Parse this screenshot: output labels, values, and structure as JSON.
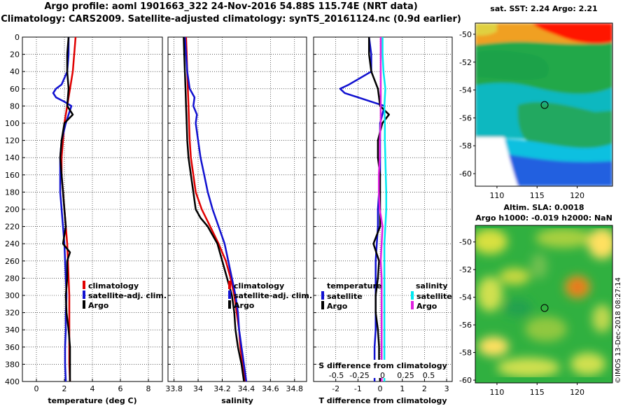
{
  "header": {
    "line1": "Argo profile: aoml 1901663_322 24-Nov-2016 54.88S 115.74E (NRT data)",
    "line2": "Climatology: CARS2009. Satellite-adjusted climatology: synTS_20161124.nc (0.9d earlier)"
  },
  "depth_ticks": [
    "0",
    "20",
    "40",
    "60",
    "80",
    "100",
    "120",
    "140",
    "160",
    "180",
    "200",
    "220",
    "240",
    "260",
    "280",
    "300",
    "320",
    "340",
    "360",
    "380",
    "400"
  ],
  "colors": {
    "climatology": "#e00000",
    "satellite": "#1010d0",
    "argo": "#000000",
    "sat_salinity": "#00e8f0",
    "argo_salinity": "#e020e0"
  },
  "sst_map": {
    "title": "sat. SST: 2.24 Argo: 2.21",
    "lat_ticks": [
      "-50",
      "-52",
      "-54",
      "-56",
      "-58",
      "-60"
    ],
    "lon_ticks": [
      "110",
      "115",
      "120"
    ]
  },
  "sla_map": {
    "title1": "Altim. SLA: 0.0018",
    "title2": "Argo h1000: -0.019 h2000: NaN",
    "lat_ticks": [
      "-50",
      "-52",
      "-54",
      "-56",
      "-58",
      "-60"
    ],
    "lon_ticks": [
      "110",
      "115",
      "120"
    ]
  },
  "credit": "©IMOS 13-Dec-2018 08:27:14",
  "chart_data": [
    {
      "type": "line",
      "id": "temperature",
      "xlabel": "temperature (deg C)",
      "ylabel": "depth",
      "xlim": [
        -1,
        9
      ],
      "ylim": [
        400,
        0
      ],
      "x_ticks": [
        "0",
        "2",
        "4",
        "6",
        "8"
      ],
      "legend": [
        "climatology",
        "satellite-adj. clim.",
        "Argo"
      ],
      "series": [
        {
          "name": "climatology",
          "depth": [
            0,
            20,
            40,
            60,
            80,
            100,
            120,
            140,
            160,
            180,
            200,
            220,
            240,
            260,
            280,
            300,
            320,
            340,
            360,
            380,
            400
          ],
          "values": [
            2.8,
            2.7,
            2.6,
            2.4,
            2.2,
            2.0,
            1.9,
            1.8,
            1.8,
            1.9,
            2.0,
            2.1,
            2.2,
            2.25,
            2.3,
            2.35,
            2.35,
            2.35,
            2.35,
            2.35,
            2.4
          ]
        },
        {
          "name": "satellite-adj. clim.",
          "depth": [
            0,
            20,
            40,
            55,
            60,
            65,
            70,
            75,
            80,
            100,
            120,
            140,
            160,
            180,
            200,
            220,
            240,
            260,
            280,
            300,
            320,
            340,
            360,
            380,
            400
          ],
          "values": [
            2.3,
            2.3,
            2.2,
            1.8,
            1.4,
            1.2,
            1.4,
            2.0,
            2.5,
            2.1,
            1.8,
            1.7,
            1.7,
            1.7,
            1.8,
            1.9,
            2.0,
            2.05,
            2.1,
            2.15,
            2.1,
            2.1,
            2.05,
            2.05,
            2.1
          ]
        },
        {
          "name": "Argo",
          "depth": [
            0,
            20,
            40,
            60,
            80,
            90,
            100,
            120,
            140,
            160,
            180,
            200,
            220,
            240,
            250,
            260,
            280,
            300,
            320,
            340,
            360,
            380,
            400
          ],
          "values": [
            2.3,
            2.2,
            2.2,
            2.3,
            2.2,
            2.6,
            2.0,
            1.8,
            1.7,
            1.8,
            1.9,
            2.0,
            2.1,
            1.9,
            2.4,
            2.2,
            2.2,
            2.1,
            2.15,
            2.3,
            2.4,
            2.4,
            2.4
          ]
        }
      ]
    },
    {
      "type": "line",
      "id": "salinity",
      "xlabel": "salinity",
      "ylabel": "depth",
      "xlim": [
        33.75,
        34.9
      ],
      "ylim": [
        400,
        0
      ],
      "x_ticks": [
        "33.8",
        "34",
        "34.2",
        "34.4",
        "34.6",
        "34.8"
      ],
      "legend": [
        "climatology",
        "satellite-adj. clim.",
        "Argo"
      ],
      "series": [
        {
          "name": "climatology",
          "depth": [
            0,
            20,
            40,
            60,
            80,
            100,
            120,
            140,
            160,
            180,
            200,
            220,
            240,
            260,
            280,
            300,
            320,
            340,
            360,
            380,
            400
          ],
          "values": [
            33.9,
            33.905,
            33.91,
            33.915,
            33.92,
            33.925,
            33.93,
            33.94,
            33.96,
            33.98,
            34.03,
            34.1,
            34.17,
            34.23,
            34.27,
            34.3,
            34.32,
            34.34,
            34.35,
            34.37,
            34.39
          ]
        },
        {
          "name": "satellite-adj. clim.",
          "depth": [
            0,
            20,
            40,
            60,
            70,
            80,
            90,
            100,
            120,
            140,
            160,
            180,
            200,
            220,
            240,
            260,
            280,
            300,
            320,
            340,
            360,
            380,
            400
          ],
          "values": [
            33.89,
            33.9,
            33.91,
            33.93,
            33.97,
            33.96,
            33.99,
            33.98,
            34.0,
            34.02,
            34.05,
            34.08,
            34.12,
            34.17,
            34.22,
            34.25,
            34.28,
            34.31,
            34.33,
            34.34,
            34.36,
            34.38,
            34.4
          ]
        },
        {
          "name": "Argo",
          "depth": [
            0,
            20,
            40,
            60,
            80,
            100,
            120,
            140,
            160,
            180,
            200,
            210,
            220,
            240,
            260,
            280,
            300,
            320,
            340,
            360,
            380,
            400
          ],
          "values": [
            33.88,
            33.885,
            33.89,
            33.895,
            33.9,
            33.905,
            33.91,
            33.92,
            33.94,
            33.96,
            33.98,
            34.02,
            34.08,
            34.16,
            34.2,
            34.24,
            34.28,
            34.3,
            34.31,
            34.33,
            34.36,
            34.38
          ]
        }
      ]
    },
    {
      "type": "line",
      "id": "difference",
      "xlabel": "T difference from climatology",
      "ylabel": "depth",
      "xlim": [
        -3,
        3.25
      ],
      "ylim": [
        400,
        0
      ],
      "x_ticks": [
        "-2",
        "-1",
        "0",
        "1",
        "2",
        "3"
      ],
      "top_axis": {
        "label": "S difference from climatology",
        "ticks": [
          "-0.5",
          "-0.25",
          "0",
          "0.25",
          "0.5"
        ]
      },
      "legend_temperature": {
        "title": "temperature",
        "entries": [
          "satellite",
          "Argo"
        ]
      },
      "legend_salinity": {
        "title": "salinity",
        "entries": [
          "satellite",
          "Argo"
        ]
      },
      "series": [
        {
          "name": "temperature satellite",
          "depth": [
            0,
            20,
            40,
            55,
            60,
            65,
            70,
            80,
            90,
            100,
            120,
            140,
            160,
            180,
            200,
            220,
            240,
            260,
            280,
            300,
            320,
            340,
            360,
            380,
            400
          ],
          "values": [
            -0.5,
            -0.4,
            -0.4,
            -1.4,
            -1.8,
            -1.6,
            -1.0,
            0.2,
            0.1,
            0.0,
            0.0,
            0.0,
            0.0,
            -0.05,
            -0.1,
            -0.1,
            -0.15,
            -0.2,
            -0.2,
            -0.2,
            -0.2,
            -0.2,
            -0.25,
            -0.25,
            -0.25
          ]
        },
        {
          "name": "temperature Argo",
          "depth": [
            0,
            20,
            40,
            60,
            80,
            90,
            100,
            120,
            140,
            160,
            180,
            200,
            220,
            240,
            260,
            280,
            300,
            320,
            340,
            360,
            380,
            400
          ],
          "values": [
            -0.5,
            -0.5,
            -0.4,
            -0.1,
            0.0,
            0.4,
            0.1,
            -0.1,
            -0.1,
            0.0,
            0.0,
            0.0,
            0.0,
            -0.3,
            -0.05,
            -0.1,
            -0.2,
            -0.2,
            -0.1,
            -0.05,
            -0.05,
            0.0
          ]
        },
        {
          "name": "salinity satellite",
          "depth": [
            0,
            20,
            40,
            60,
            80,
            100,
            120,
            140,
            160,
            180,
            200,
            220,
            240,
            260,
            280,
            300,
            320,
            340,
            360,
            380,
            400
          ],
          "values": [
            0.0,
            0.0,
            0.01,
            0.03,
            0.02,
            0.025,
            0.025,
            0.03,
            0.035,
            0.04,
            0.04,
            0.03,
            0.02,
            0.02,
            0.02,
            0.02,
            0.02,
            0.02,
            0.02,
            0.02,
            0.02
          ]
        },
        {
          "name": "salinity Argo",
          "depth": [
            0,
            20,
            40,
            60,
            80,
            100,
            120,
            140,
            160,
            180,
            200,
            220,
            240,
            260,
            280,
            300,
            320,
            340,
            360,
            380,
            400
          ],
          "values": [
            -0.02,
            -0.02,
            -0.02,
            -0.02,
            -0.02,
            -0.02,
            -0.03,
            -0.03,
            -0.04,
            -0.04,
            -0.03,
            0.0,
            -0.01,
            -0.02,
            -0.01,
            -0.01,
            -0.01,
            -0.01,
            -0.01,
            -0.01,
            -0.01
          ]
        }
      ]
    }
  ]
}
